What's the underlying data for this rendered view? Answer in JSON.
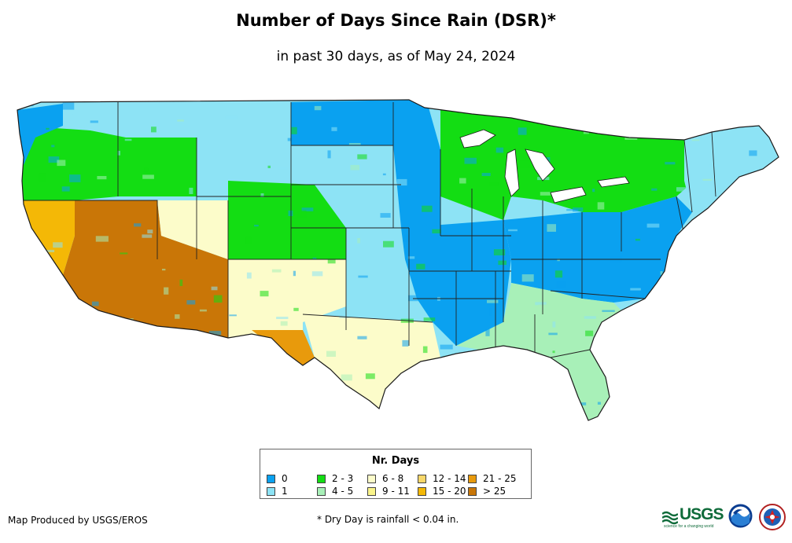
{
  "title": "Number of Days Since Rain (DSR)*",
  "subtitle": "in past 30 days, as of May 24, 2024",
  "legend": {
    "title": "Nr. Days",
    "items": [
      {
        "label": "0",
        "color": "#0aa1f0"
      },
      {
        "label": "1",
        "color": "#8de3f5"
      },
      {
        "label": "2 - 3",
        "color": "#13dd13"
      },
      {
        "label": "4 - 5",
        "color": "#a8f0b8"
      },
      {
        "label": "6 - 8",
        "color": "#fcfcca"
      },
      {
        "label": "9 - 11",
        "color": "#faf48a"
      },
      {
        "label": "12 - 14",
        "color": "#f7d76a"
      },
      {
        "label": "15 - 20",
        "color": "#f4b806"
      },
      {
        "label": "21 - 25",
        "color": "#e89a0c"
      },
      {
        "label": "> 25",
        "color": "#c97607"
      }
    ]
  },
  "footer": {
    "producer": "Map Produced by USGS/EROS",
    "footnote": "* Dry Day is rainfall < 0.04 in."
  },
  "logos": {
    "usgs": "USGS",
    "usgs_tagline": "science for a changing world",
    "noaa": "noaa-logo",
    "nws": "nws-logo"
  },
  "map": {
    "region": "Contiguous United States",
    "state_borders": "black",
    "regions": [
      {
        "name": "pacific-northwest-coast",
        "class": "0"
      },
      {
        "name": "washington-oregon-interior",
        "class": "2 - 3"
      },
      {
        "name": "idaho-montana",
        "class": "1"
      },
      {
        "name": "north-dakota-minnesota-iowa",
        "class": "0"
      },
      {
        "name": "south-dakota-nebraska",
        "class": "1"
      },
      {
        "name": "colorado-east",
        "class": "2 - 3"
      },
      {
        "name": "california",
        "class": "15 - 20"
      },
      {
        "name": "nevada-arizona-south",
        "class": "> 25"
      },
      {
        "name": "utah-colorado-west",
        "class": "6 - 8"
      },
      {
        "name": "new-mexico-west-texas",
        "class": "6 - 8"
      },
      {
        "name": "texas-big-bend",
        "class": "21 - 25"
      },
      {
        "name": "texas-gulf",
        "class": "6 - 8"
      },
      {
        "name": "mississippi-valley",
        "class": "0"
      },
      {
        "name": "ohio-valley-appalachia",
        "class": "0"
      },
      {
        "name": "great-lakes-northeast",
        "class": "2 - 3"
      },
      {
        "name": "new-england",
        "class": "1"
      },
      {
        "name": "southeast",
        "class": "4 - 5"
      },
      {
        "name": "florida",
        "class": "4 - 5"
      }
    ]
  }
}
